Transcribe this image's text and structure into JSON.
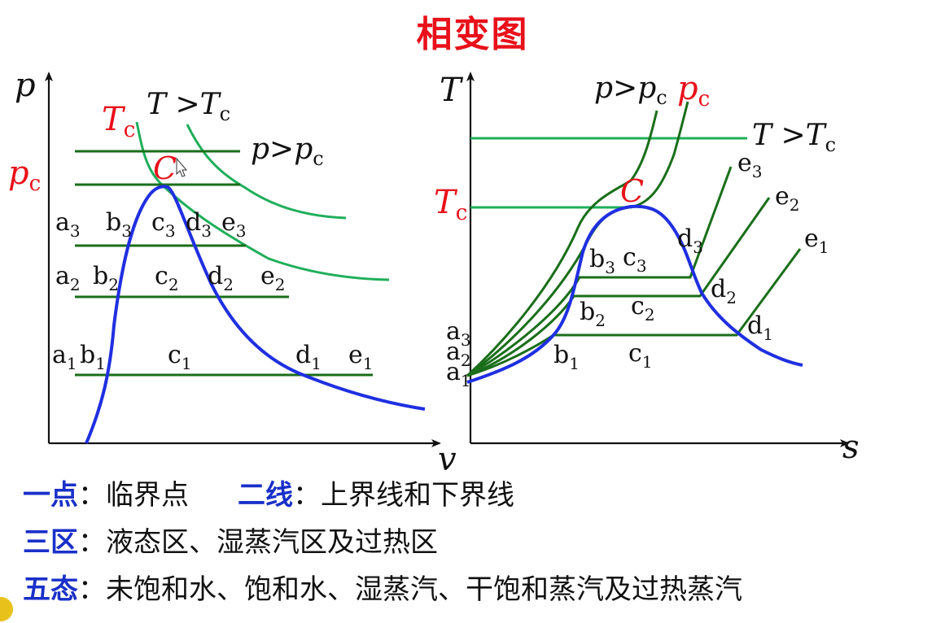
{
  "title": "相变图",
  "colors": {
    "title": "#e8101a",
    "saturation_curve": "#1f2fe0",
    "isotherm_light": "#1fae5a",
    "isobar_dark": "#1a6e1a",
    "red_label": "#e8101a",
    "axis": "#111111",
    "key_text": "#1a30c8"
  },
  "pv_diagram": {
    "y_axis": "p",
    "x_axis": "v",
    "critical_point": "C",
    "tc_label": {
      "main": "T",
      "sub": "c"
    },
    "pc_label": {
      "main": "p",
      "sub": "c"
    },
    "isotherm_above_label": {
      "main": "T >T",
      "sub": "c"
    },
    "isobar_above_label": {
      "main": "p>p",
      "sub": "c"
    },
    "points": {
      "a3": {
        "main": "a",
        "sub": "3"
      },
      "b3": {
        "main": "b",
        "sub": "3"
      },
      "c3": {
        "main": "c",
        "sub": "3"
      },
      "d3": {
        "main": "d",
        "sub": "3"
      },
      "e3": {
        "main": "e",
        "sub": "3"
      },
      "a2": {
        "main": "a",
        "sub": "2"
      },
      "b2": {
        "main": "b",
        "sub": "2"
      },
      "c2": {
        "main": "c",
        "sub": "2"
      },
      "d2": {
        "main": "d",
        "sub": "2"
      },
      "e2": {
        "main": "e",
        "sub": "2"
      },
      "a1": {
        "main": "a",
        "sub": "1"
      },
      "b1": {
        "main": "b",
        "sub": "1"
      },
      "c1": {
        "main": "c",
        "sub": "1"
      },
      "d1": {
        "main": "d",
        "sub": "1"
      },
      "e1": {
        "main": "e",
        "sub": "1"
      }
    }
  },
  "ts_diagram": {
    "y_axis": "T",
    "x_axis": "s",
    "critical_point": "C",
    "tc_label": {
      "main": "T",
      "sub": "c"
    },
    "pc_label": {
      "main": "p",
      "sub": "c"
    },
    "isobar_above_label": {
      "main": "p>p",
      "sub": "c"
    },
    "isotherm_above_label": {
      "main": "T >T",
      "sub": "c"
    },
    "points": {
      "a3": {
        "main": "a",
        "sub": "3"
      },
      "a2": {
        "main": "a",
        "sub": "2"
      },
      "a1": {
        "main": "a",
        "sub": "1"
      },
      "b3": {
        "main": "b",
        "sub": "3"
      },
      "c3": {
        "main": "c",
        "sub": "3"
      },
      "d3": {
        "main": "d",
        "sub": "3"
      },
      "e3": {
        "main": "e",
        "sub": "3"
      },
      "b2": {
        "main": "b",
        "sub": "2"
      },
      "c2": {
        "main": "c",
        "sub": "2"
      },
      "d2": {
        "main": "d",
        "sub": "2"
      },
      "e2": {
        "main": "e",
        "sub": "2"
      },
      "b1": {
        "main": "b",
        "sub": "1"
      },
      "c1": {
        "main": "c",
        "sub": "1"
      },
      "d1": {
        "main": "d",
        "sub": "1"
      },
      "e1": {
        "main": "e",
        "sub": "1"
      }
    }
  },
  "summary": [
    {
      "key": "一点",
      "sep": "：",
      "text": "临界点",
      "key2": "二线",
      "sep2": "：",
      "text2": "上界线和下界线"
    },
    {
      "key": "三区",
      "sep": "：",
      "text": "液态区、湿蒸汽区及过热区"
    },
    {
      "key": "五态",
      "sep": "：",
      "text": "未饱和水、饱和水、湿蒸汽、干饱和蒸汽及过热蒸汽"
    }
  ]
}
